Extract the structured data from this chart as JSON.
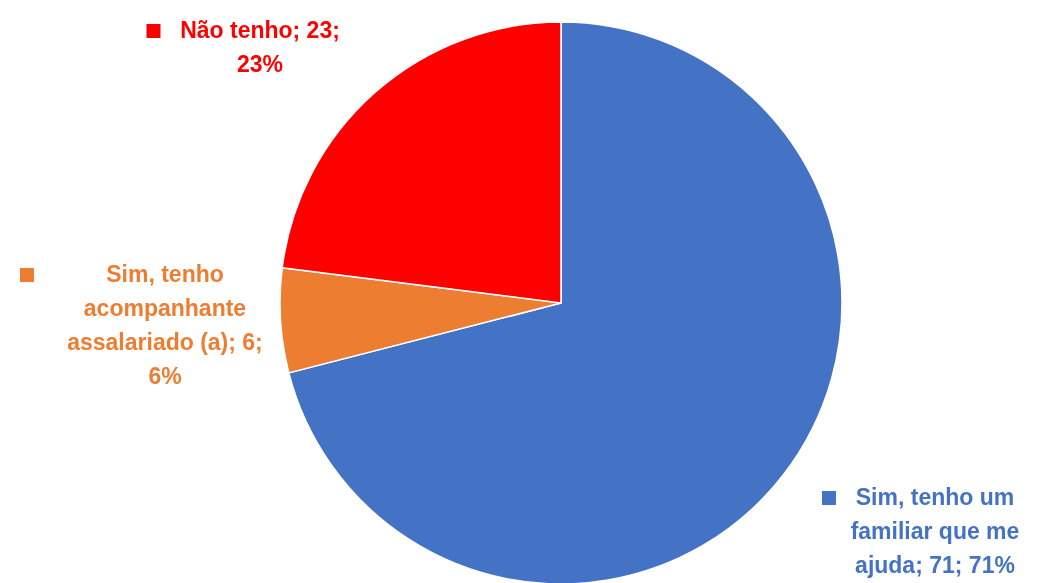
{
  "chart_data": {
    "type": "pie",
    "categories": [
      "Sim, tenho um familiar que me ajuda",
      "Sim, tenho acompanhante assalariado (a)",
      "Não tenho"
    ],
    "values": [
      71,
      6,
      23
    ],
    "colors": [
      "#4472c4",
      "#ed7d31",
      "#ff0000"
    ],
    "value_labels": [
      "71; 71%",
      "6; 6%",
      "23; 23%"
    ],
    "legend": "right"
  }
}
